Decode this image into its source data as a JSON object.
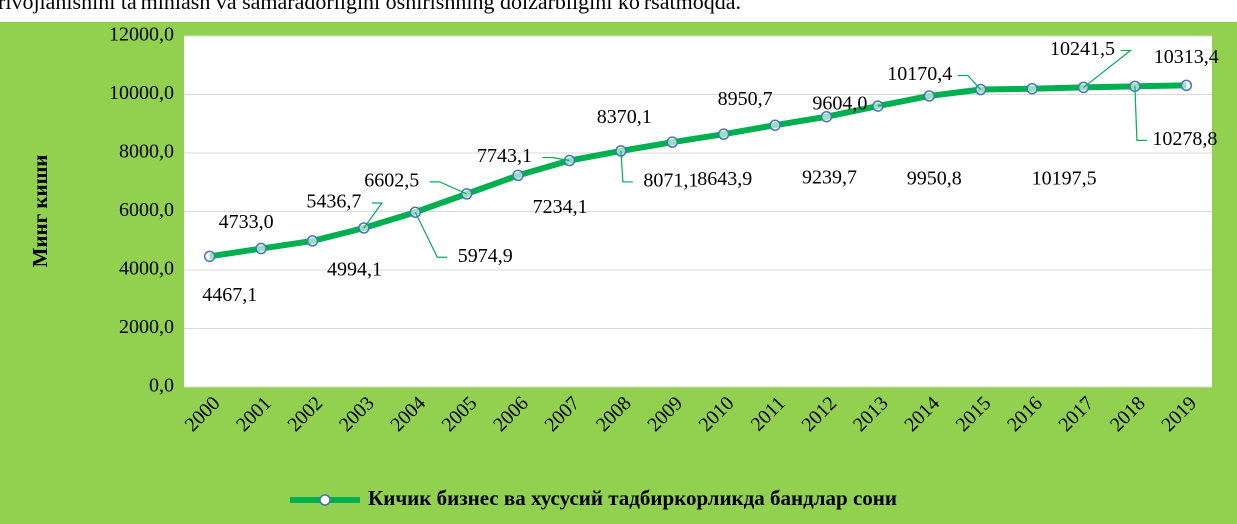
{
  "caption": "rivojlanishini ta'minlash va samaradorligini oshirishning dolzarbligini ko'rsatmoqda.",
  "chart_data": {
    "type": "line",
    "y_label": "Минг киши",
    "categories": [
      "2000",
      "2001",
      "2002",
      "2003",
      "2004",
      "2005",
      "2006",
      "2007",
      "2008",
      "2009",
      "2010",
      "2011",
      "2012",
      "2013",
      "2014",
      "2015",
      "2016",
      "2017",
      "2018",
      "2019"
    ],
    "series": [
      {
        "name": "Кичик бизнес ва хусусий тадбиркорликда бандлар сони",
        "color": "#00b050",
        "marker_color": "#4472c4",
        "values": [
          4467.1,
          4733.0,
          4994.1,
          5436.7,
          5974.9,
          6602.5,
          7234.1,
          7743.1,
          8071.1,
          8370.1,
          8643.9,
          8950.7,
          9239.7,
          9604.0,
          9950.8,
          10170.4,
          10197.5,
          10241.5,
          10278.8,
          10313.4
        ],
        "value_labels": [
          "4467,1",
          "4733,0",
          "4994,1",
          "5436,7",
          "5974,9",
          "6602,5",
          "7234,1",
          "7743,1",
          "8071,1",
          "8370,1",
          "8643,9",
          "8950,7",
          "9239,7",
          "9604,0",
          "9950,8",
          "10170,4",
          "10197,5",
          "10241,5",
          "10278,8",
          "10313,4"
        ]
      }
    ],
    "ylim": [
      0,
      12000
    ],
    "yticks": [
      {
        "value": 0,
        "label": "0,0"
      },
      {
        "value": 2000,
        "label": "2000,0"
      },
      {
        "value": 4000,
        "label": "4000,0"
      },
      {
        "value": 6000,
        "label": "6000,0"
      },
      {
        "value": 8000,
        "label": "8000,0"
      },
      {
        "value": 10000,
        "label": "10000,0"
      },
      {
        "value": 12000,
        "label": "12000,0"
      }
    ],
    "grid": true,
    "legend": "bottom",
    "background": "#92d050"
  }
}
